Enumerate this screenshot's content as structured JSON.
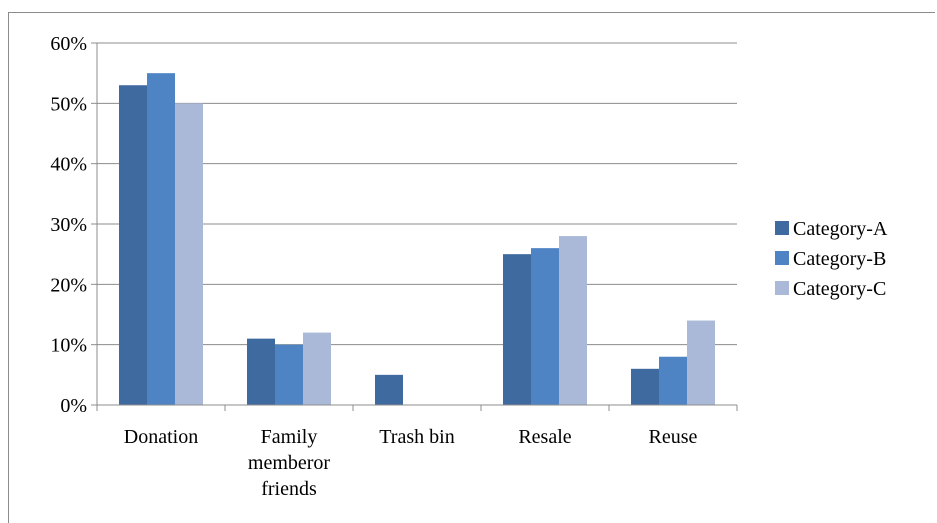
{
  "chart_data": {
    "type": "bar",
    "title": "",
    "xlabel": "",
    "ylabel": "",
    "categories": [
      [
        "Donation"
      ],
      [
        "Family",
        "memberor",
        "friends"
      ],
      [
        "Trash bin"
      ],
      [
        "Resale"
      ],
      [
        "Reuse"
      ]
    ],
    "series": [
      {
        "name": "Category-A",
        "color": "#3f6aa0",
        "values": [
          53,
          11,
          5,
          25,
          6
        ]
      },
      {
        "name": "Category-B",
        "color": "#4f84c4",
        "values": [
          55,
          10,
          0,
          26,
          8
        ]
      },
      {
        "name": "Category-C",
        "color": "#aab9d8",
        "values": [
          50,
          12,
          0,
          28,
          14
        ]
      }
    ],
    "ylim": [
      0,
      60
    ],
    "yticks": [
      "0%",
      "10%",
      "20%",
      "30%",
      "40%",
      "50%",
      "60%"
    ],
    "grid": true,
    "legend_position": "right"
  }
}
